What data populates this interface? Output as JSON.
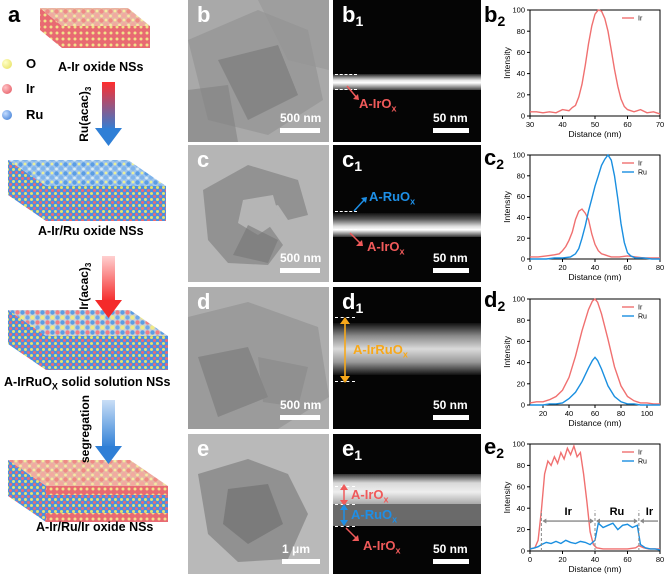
{
  "labels": {
    "a": "a",
    "b": "b",
    "b1": "b",
    "b1_sub": "1",
    "b2": "b",
    "b2_sub": "2",
    "c": "c",
    "c1": "c",
    "c1_sub": "1",
    "c2": "c",
    "c2_sub": "2",
    "d": "d",
    "d1": "d",
    "d1_sub": "1",
    "d2": "d",
    "d2_sub": "2",
    "e": "e",
    "e1": "e",
    "e1_sub": "1",
    "e2": "e",
    "e2_sub": "2"
  },
  "schematic": {
    "legend": [
      {
        "label": "O",
        "color": "#f2ef7c"
      },
      {
        "label": "Ir",
        "color": "#ef6b73"
      },
      {
        "label": "Ru",
        "color": "#4a8fe0"
      }
    ],
    "steps": [
      {
        "caption": "A-Ir oxide NSs"
      },
      {
        "caption": "A-Ir/Ru oxide NSs"
      },
      {
        "caption": "A-IrRuO",
        "caption_sub": "X",
        "caption_tail": " solid solution NSs"
      },
      {
        "caption": "A-Ir/Ru/Ir oxide NSs"
      }
    ],
    "arrows": [
      {
        "label": "Ru(acac)",
        "label_sub": "3"
      },
      {
        "label": "Ir(acac)",
        "label_sub": "3"
      },
      {
        "label": "segregation",
        "label_sub": ""
      }
    ]
  },
  "tem": {
    "b": {
      "scale": "500 nm"
    },
    "c": {
      "scale": "500 nm"
    },
    "d": {
      "scale": "500 nm"
    },
    "e": {
      "scale": "1 μm"
    }
  },
  "haadf": {
    "b1": {
      "scale": "50 nm",
      "annotations": [
        {
          "text": "A-IrO",
          "sub": "x",
          "color": "#f05a5a"
        }
      ]
    },
    "c1": {
      "scale": "50 nm",
      "annotations": [
        {
          "text": "A-RuO",
          "sub": "x",
          "color": "#1e8fe6"
        },
        {
          "text": "A-IrO",
          "sub": "x",
          "color": "#f05a5a"
        }
      ]
    },
    "d1": {
      "scale": "50 nm",
      "annotations": [
        {
          "text": "A-IrRuO",
          "sub": "x",
          "color": "#f7a81b"
        }
      ]
    },
    "e1": {
      "scale": "50 nm",
      "annotations": [
        {
          "text": "A-IrO",
          "sub": "x",
          "color": "#f05a5a"
        },
        {
          "text": "A-RuO",
          "sub": "x",
          "color": "#1e8fe6"
        },
        {
          "text": "A-IrO",
          "sub": "x",
          "color": "#f05a5a"
        }
      ]
    }
  },
  "colors": {
    "ir": "#f07070",
    "ru": "#1a8fe0"
  },
  "chart_data": [
    {
      "id": "b2",
      "type": "line",
      "xlabel": "Distance (nm)",
      "ylabel": "Intensity",
      "xlim": [
        30,
        70
      ],
      "ylim": [
        0,
        100
      ],
      "xticks": [
        30,
        40,
        50,
        60,
        70
      ],
      "yticks": [
        0,
        20,
        40,
        60,
        80,
        100
      ],
      "legend": "top-right",
      "series": [
        {
          "name": "Ir",
          "color": "#f07070",
          "x": [
            30,
            32,
            34,
            36,
            38,
            40,
            42,
            43,
            44,
            45,
            46,
            47,
            48,
            49,
            50,
            51,
            52,
            53,
            54,
            55,
            56,
            57,
            58,
            59,
            60,
            62,
            64,
            66,
            68,
            70
          ],
          "y": [
            4,
            4,
            3,
            4,
            3,
            6,
            5,
            8,
            10,
            18,
            30,
            48,
            68,
            85,
            96,
            100,
            99,
            92,
            80,
            62,
            44,
            28,
            16,
            9,
            6,
            4,
            6,
            3,
            4,
            2
          ]
        }
      ]
    },
    {
      "id": "c2",
      "type": "line",
      "xlabel": "Distance (nm)",
      "ylabel": "Intensity",
      "xlim": [
        0,
        80
      ],
      "ylim": [
        0,
        100
      ],
      "xticks": [
        0,
        20,
        40,
        60,
        80
      ],
      "yticks": [
        0,
        20,
        40,
        60,
        80,
        100
      ],
      "legend": "top-right",
      "series": [
        {
          "name": "Ir",
          "color": "#f07070",
          "x": [
            0,
            5,
            10,
            15,
            18,
            20,
            22,
            24,
            26,
            28,
            30,
            32,
            34,
            36,
            38,
            40,
            42,
            44,
            46,
            48,
            50,
            55,
            60,
            65,
            70,
            75,
            80
          ],
          "y": [
            2,
            2,
            3,
            4,
            5,
            8,
            12,
            18,
            26,
            38,
            46,
            48,
            44,
            38,
            24,
            14,
            8,
            5,
            4,
            3,
            2,
            2,
            3,
            2,
            1,
            1,
            1
          ]
        },
        {
          "name": "Ru",
          "color": "#1a8fe0",
          "x": [
            0,
            5,
            10,
            15,
            20,
            25,
            28,
            30,
            32,
            34,
            36,
            38,
            40,
            42,
            44,
            46,
            48,
            50,
            52,
            54,
            56,
            58,
            60,
            62,
            65,
            70,
            75,
            80
          ],
          "y": [
            0,
            0,
            0,
            1,
            1,
            2,
            5,
            10,
            20,
            32,
            46,
            58,
            70,
            80,
            90,
            96,
            100,
            95,
            80,
            58,
            34,
            16,
            6,
            3,
            1,
            1,
            0,
            0
          ]
        }
      ]
    },
    {
      "id": "d2",
      "type": "line",
      "xlabel": "Distance (nm)",
      "ylabel": "Intensity",
      "xlim": [
        10,
        110
      ],
      "ylim": [
        0,
        100
      ],
      "xticks": [
        20,
        40,
        60,
        80,
        100
      ],
      "yticks": [
        0,
        20,
        40,
        60,
        80,
        100
      ],
      "legend": "top-right",
      "series": [
        {
          "name": "Ir",
          "color": "#f07070",
          "x": [
            10,
            15,
            20,
            25,
            30,
            35,
            40,
            45,
            50,
            55,
            58,
            60,
            62,
            65,
            70,
            75,
            80,
            85,
            90,
            95,
            100,
            105,
            110
          ],
          "y": [
            2,
            3,
            3,
            5,
            8,
            14,
            26,
            46,
            70,
            90,
            98,
            100,
            97,
            86,
            62,
            36,
            18,
            8,
            4,
            2,
            2,
            1,
            1
          ]
        },
        {
          "name": "Ru",
          "color": "#1a8fe0",
          "x": [
            10,
            15,
            20,
            25,
            30,
            35,
            40,
            45,
            50,
            55,
            58,
            60,
            62,
            65,
            70,
            75,
            80,
            85,
            90,
            95,
            100,
            105,
            110
          ],
          "y": [
            0,
            0,
            0,
            1,
            1,
            2,
            6,
            12,
            22,
            35,
            42,
            45,
            42,
            34,
            18,
            8,
            3,
            1,
            1,
            0,
            0,
            0,
            0
          ]
        }
      ]
    },
    {
      "id": "e2",
      "type": "line",
      "xlabel": "Distance (nm)",
      "ylabel": "Intensity",
      "xlim": [
        0,
        80
      ],
      "ylim": [
        0,
        100
      ],
      "xticks": [
        0,
        20,
        40,
        60,
        80
      ],
      "yticks": [
        0,
        20,
        40,
        60,
        80,
        100
      ],
      "legend": "top-right",
      "annotations": [
        {
          "text": "Ir",
          "x_range": [
            7,
            40
          ]
        },
        {
          "text": "Ru",
          "x_range": [
            40,
            67
          ]
        },
        {
          "text": "Ir",
          "x_range": [
            67,
            80
          ]
        }
      ],
      "series": [
        {
          "name": "Ir",
          "color": "#f07070",
          "x": [
            0,
            3,
            5,
            7,
            9,
            11,
            13,
            15,
            17,
            19,
            21,
            23,
            25,
            27,
            29,
            31,
            33,
            35,
            37,
            39,
            41,
            45,
            50,
            55,
            60,
            65,
            67,
            70,
            73,
            76,
            80
          ],
          "y": [
            2,
            3,
            10,
            38,
            72,
            84,
            80,
            88,
            82,
            92,
            86,
            96,
            90,
            98,
            88,
            92,
            72,
            46,
            18,
            6,
            3,
            2,
            2,
            2,
            2,
            3,
            5,
            3,
            2,
            2,
            2
          ]
        },
        {
          "name": "Ru",
          "color": "#1a8fe0",
          "x": [
            0,
            3,
            5,
            7,
            10,
            13,
            16,
            19,
            22,
            25,
            28,
            31,
            34,
            37,
            40,
            42,
            45,
            48,
            51,
            54,
            57,
            60,
            63,
            66,
            68,
            71,
            74,
            77,
            80
          ],
          "y": [
            2,
            3,
            4,
            6,
            8,
            7,
            9,
            7,
            10,
            8,
            7,
            9,
            8,
            6,
            10,
            26,
            22,
            24,
            26,
            20,
            24,
            25,
            22,
            24,
            6,
            3,
            2,
            2,
            1
          ]
        }
      ]
    }
  ]
}
